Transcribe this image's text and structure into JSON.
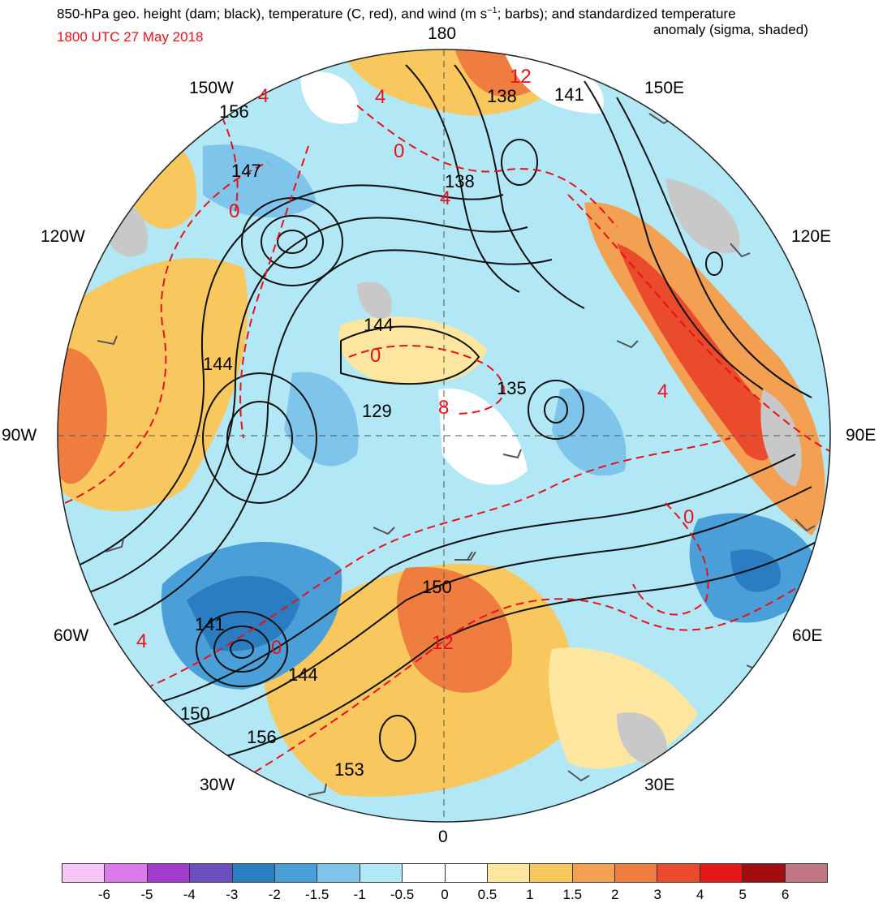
{
  "title": {
    "line1_main": "850-hPa geo. height (dam; black), temperature (C, red), and wind (m s",
    "line1_sup": "−1",
    "line1_end": "; barbs); and standardized temperature",
    "line2": "anomaly (sigma, shaded)",
    "valid_time": "1800 UTC 27 May 2018"
  },
  "colors": {
    "valid_time": "#e8101a",
    "height_contour": "#111111",
    "temperature_contour": "#e8101a",
    "barb": "#555555"
  },
  "longitude_labels": {
    "top": "180",
    "top_left": "150W",
    "top_right": "150E",
    "upper_left": "120W",
    "upper_right": "120E",
    "left": "90W",
    "right": "90E",
    "lower_left": "60W",
    "lower_right": "60E",
    "bottom_left": "30W",
    "bottom_right": "30E",
    "bottom": "0"
  },
  "height_labels": [
    "138",
    "141",
    "156",
    "147",
    "138",
    "144",
    "144",
    "135",
    "129",
    "141",
    "150",
    "144",
    "150",
    "156",
    "153"
  ],
  "temperature_labels": [
    "12",
    "4",
    "4",
    "0",
    "4",
    "0",
    "0",
    "8",
    "4",
    "4",
    "0",
    "12",
    "0"
  ],
  "legend": {
    "colors": [
      "#f5c6f7",
      "#dc78ec",
      "#a33ccc",
      "#6a4fbd",
      "#2a7dc1",
      "#4a9fd8",
      "#7fc4ea",
      "#b2e8f6",
      "#ffffff",
      "#ffffff",
      "#fde7a0",
      "#f8c75d",
      "#f3a052",
      "#ee7d3f",
      "#ea4b2c",
      "#e81717",
      "#a30d0d",
      "#c07683"
    ],
    "ticks": [
      "-6",
      "-5",
      "-4",
      "-3",
      "-2",
      "-1.5",
      "-1",
      "-0.5",
      "0",
      "0.5",
      "1",
      "1.5",
      "2",
      "3",
      "4",
      "5",
      "6"
    ]
  }
}
